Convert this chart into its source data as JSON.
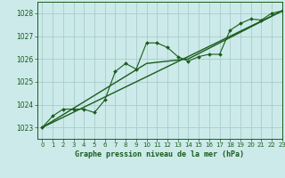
{
  "title": "Graphe pression niveau de la mer (hPa)",
  "bg_color": "#cceaea",
  "grid_color": "#aacccc",
  "line_color": "#1a5c1a",
  "xlim": [
    -0.5,
    23
  ],
  "ylim": [
    1022.5,
    1028.5
  ],
  "yticks": [
    1023,
    1024,
    1025,
    1026,
    1027,
    1028
  ],
  "xticks": [
    0,
    1,
    2,
    3,
    4,
    5,
    6,
    7,
    8,
    9,
    10,
    11,
    12,
    13,
    14,
    15,
    16,
    17,
    18,
    19,
    20,
    21,
    22,
    23
  ],
  "series_measured_x": [
    0,
    1,
    2,
    3,
    4,
    5,
    6,
    7,
    8,
    9,
    10,
    11,
    12,
    13,
    14,
    15,
    16,
    17,
    18,
    19,
    20,
    21,
    22,
    23
  ],
  "series_measured_y": [
    1023.0,
    1023.5,
    1023.8,
    1023.8,
    1023.8,
    1023.65,
    1024.2,
    1025.45,
    1025.8,
    1025.55,
    1026.7,
    1026.7,
    1026.5,
    1026.1,
    1025.9,
    1026.1,
    1026.2,
    1026.2,
    1027.25,
    1027.55,
    1027.75,
    1027.7,
    1028.0,
    1028.1
  ],
  "series_trend1_x": [
    0,
    23
  ],
  "series_trend1_y": [
    1023.0,
    1028.1
  ],
  "series_trend2_x": [
    0,
    10,
    14,
    23
  ],
  "series_trend2_y": [
    1023.0,
    1025.8,
    1026.0,
    1028.1
  ]
}
